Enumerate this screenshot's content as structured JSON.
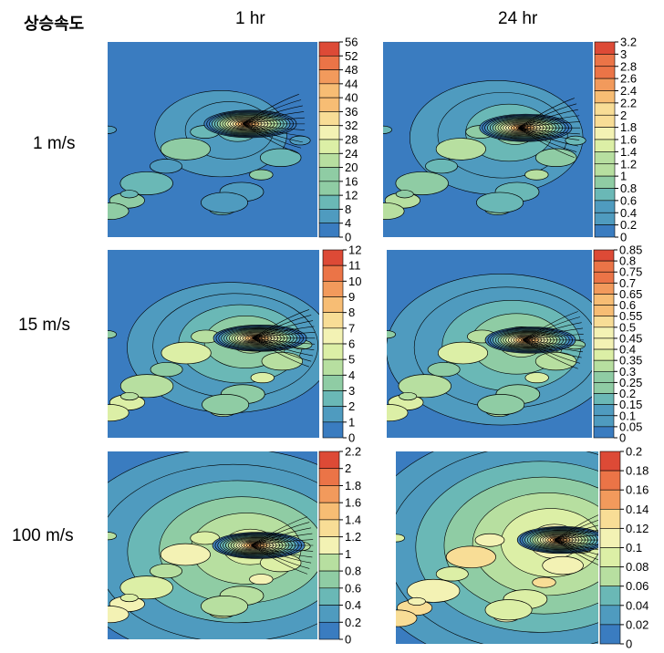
{
  "corner_label": "상승속도",
  "columns": [
    "1 hr",
    "24 hr"
  ],
  "rows": [
    "1 m/s",
    "15 m/s",
    "100 m/s"
  ],
  "palette": [
    "#3a7cc0",
    "#4f9bbf",
    "#6ab8b6",
    "#8fcca4",
    "#b7dfa0",
    "#dcefa6",
    "#f3f2b4",
    "#f8dd96",
    "#f7bd74",
    "#f29a5c",
    "#eb7447",
    "#dd4a36"
  ],
  "chart_data": [
    {
      "type": "heatmap",
      "row": "1 m/s",
      "column": "1 hr",
      "colorbar_ticks": [
        "56",
        "52",
        "48",
        "44",
        "40",
        "36",
        "32",
        "28",
        "24",
        "20",
        "16",
        "12",
        "8",
        "4",
        "0"
      ]
    },
    {
      "type": "heatmap",
      "row": "1 m/s",
      "column": "24 hr",
      "colorbar_ticks": [
        "3.2",
        "3",
        "2.8",
        "2.6",
        "2.4",
        "2.2",
        "2",
        "1.8",
        "1.6",
        "1.4",
        "1.2",
        "1",
        "0.8",
        "0.6",
        "0.4",
        "0.2",
        "0"
      ]
    },
    {
      "type": "heatmap",
      "row": "15 m/s",
      "column": "1 hr",
      "colorbar_ticks": [
        "12",
        "11",
        "10",
        "9",
        "8",
        "7",
        "6",
        "5",
        "4",
        "3",
        "2",
        "1",
        "0"
      ]
    },
    {
      "type": "heatmap",
      "row": "15 m/s",
      "column": "24 hr",
      "colorbar_ticks": [
        "0.85",
        "0.8",
        "0.75",
        "0.7",
        "0.65",
        "0.6",
        "0.55",
        "0.5",
        "0.45",
        "0.4",
        "0.35",
        "0.3",
        "0.25",
        "0.2",
        "0.15",
        "0.1",
        "0.05",
        "0"
      ]
    },
    {
      "type": "heatmap",
      "row": "100 m/s",
      "column": "1 hr",
      "colorbar_ticks": [
        "2.2",
        "2",
        "1.8",
        "1.6",
        "1.4",
        "1.2",
        "1",
        "0.8",
        "0.6",
        "0.4",
        "0.2",
        "0"
      ]
    },
    {
      "type": "heatmap",
      "row": "100 m/s",
      "column": "24 hr",
      "colorbar_ticks": [
        "0.2",
        "0.18",
        "0.16",
        "0.14",
        "0.12",
        "0.1",
        "0.08",
        "0.06",
        "0.04",
        "0.02",
        "0"
      ]
    }
  ]
}
